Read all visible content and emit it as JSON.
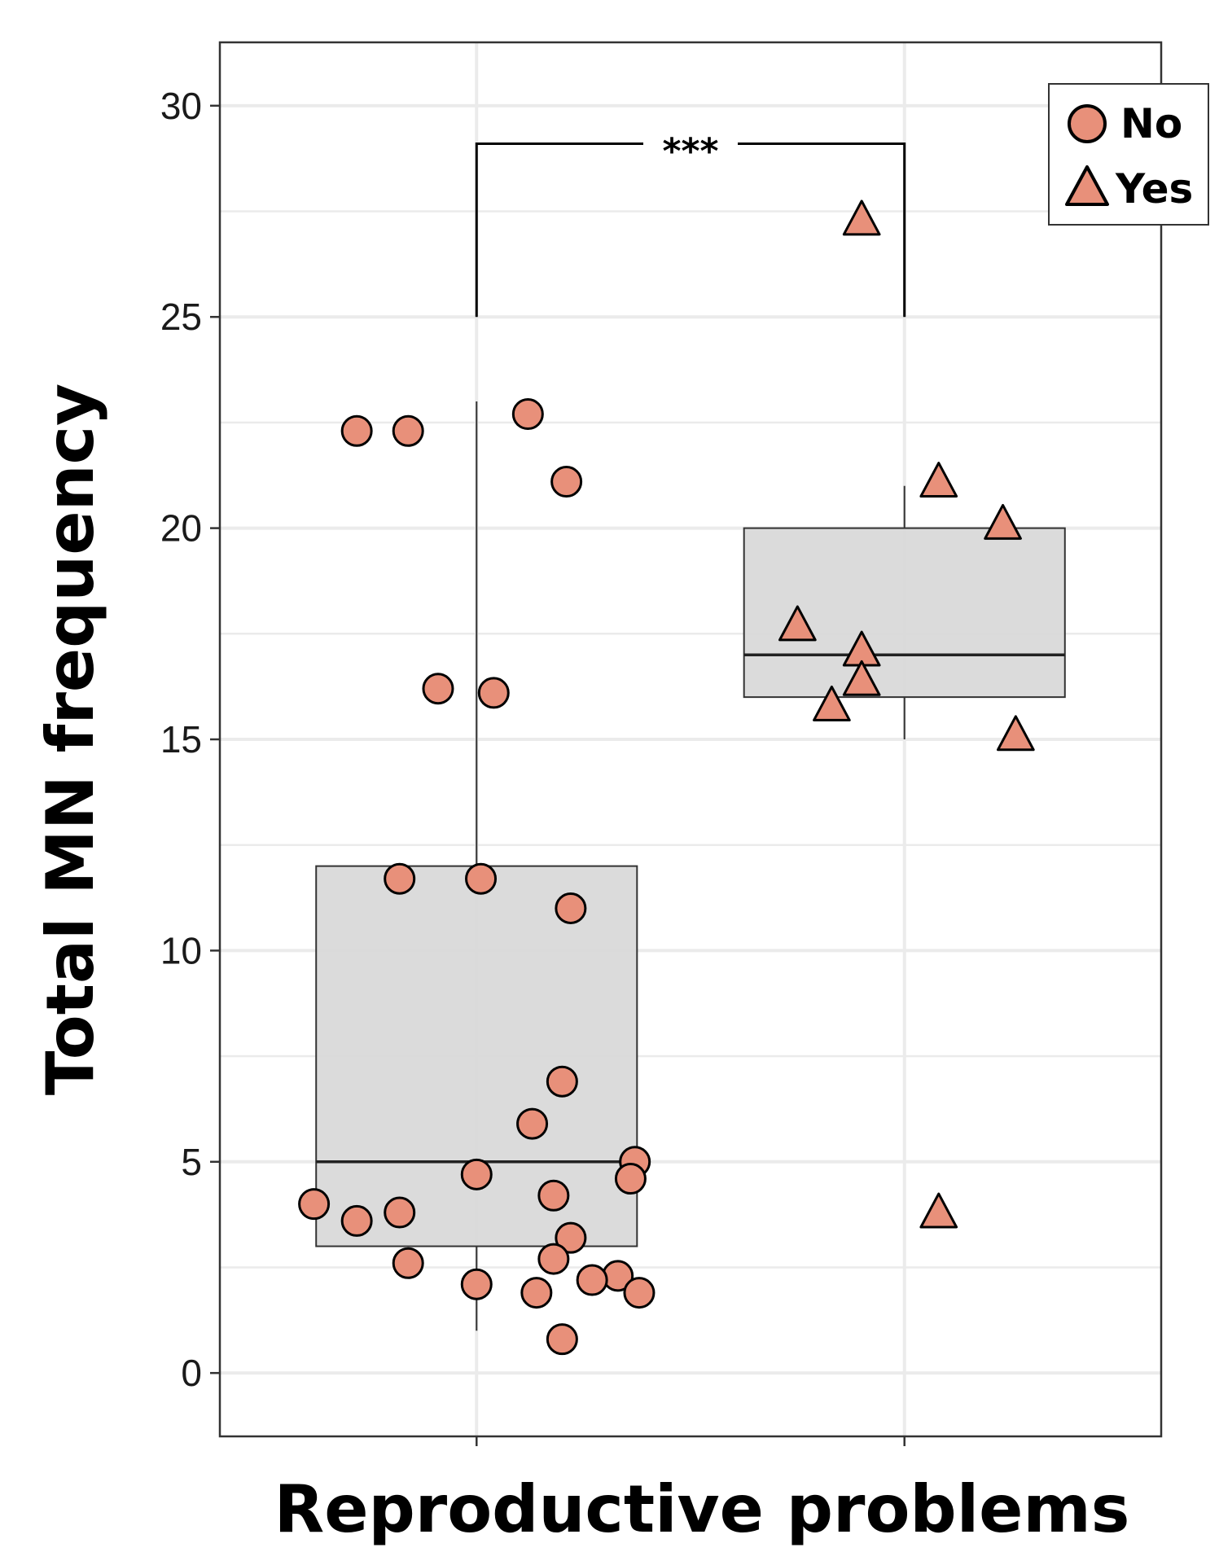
{
  "chart_data": {
    "type": "boxplot",
    "title": "",
    "xlabel": "Reproductive problems",
    "ylabel": "Total MN frequency",
    "ylim": [
      -1.5,
      31.5
    ],
    "yticks": [
      0,
      5,
      10,
      15,
      20,
      25,
      30
    ],
    "grid": true,
    "legend_position": "top-right",
    "colors": {
      "point_fill": "#E8907A",
      "point_stroke": "#000000",
      "box_fill": "#D9D9D9",
      "box_stroke": "#333333",
      "grid": "#EBEBEB"
    },
    "legend": [
      {
        "label": "No",
        "shape": "circle-icon"
      },
      {
        "label": "Yes",
        "shape": "triangle-icon"
      }
    ],
    "significance": {
      "label": "***",
      "between": [
        "No",
        "Yes"
      ],
      "bracket_top": 29.1,
      "bracket_bottom": 25.0
    },
    "groups": [
      {
        "name": "No",
        "shape": "circle",
        "box": {
          "whisker_low": 1.0,
          "q1": 3.0,
          "median": 5.0,
          "q3": 12.0,
          "whisker_high": 23.0
        },
        "points": [
          {
            "jitter": -0.28,
            "y": 22.3
          },
          {
            "jitter": -0.16,
            "y": 22.3
          },
          {
            "jitter": 0.12,
            "y": 22.7
          },
          {
            "jitter": 0.21,
            "y": 21.1
          },
          {
            "jitter": -0.09,
            "y": 16.2
          },
          {
            "jitter": 0.04,
            "y": 16.1
          },
          {
            "jitter": -0.18,
            "y": 11.7
          },
          {
            "jitter": 0.01,
            "y": 11.7
          },
          {
            "jitter": 0.22,
            "y": 11.0
          },
          {
            "jitter": 0.2,
            "y": 6.9
          },
          {
            "jitter": 0.13,
            "y": 5.9
          },
          {
            "jitter": 0.37,
            "y": 5.0
          },
          {
            "jitter": 0.0,
            "y": 4.7
          },
          {
            "jitter": 0.36,
            "y": 4.6
          },
          {
            "jitter": 0.18,
            "y": 4.2
          },
          {
            "jitter": -0.38,
            "y": 4.0
          },
          {
            "jitter": -0.18,
            "y": 3.8
          },
          {
            "jitter": -0.28,
            "y": 3.6
          },
          {
            "jitter": 0.22,
            "y": 3.2
          },
          {
            "jitter": 0.18,
            "y": 2.7
          },
          {
            "jitter": -0.16,
            "y": 2.6
          },
          {
            "jitter": 0.33,
            "y": 2.3
          },
          {
            "jitter": 0.27,
            "y": 2.2
          },
          {
            "jitter": 0.0,
            "y": 2.1
          },
          {
            "jitter": 0.14,
            "y": 1.9
          },
          {
            "jitter": 0.38,
            "y": 1.9
          },
          {
            "jitter": 0.2,
            "y": 0.8
          }
        ]
      },
      {
        "name": "Yes",
        "shape": "triangle",
        "box": {
          "whisker_low": 15.0,
          "q1": 16.0,
          "median": 17.0,
          "q3": 20.0,
          "whisker_high": 21.0
        },
        "points": [
          {
            "jitter": -0.1,
            "y": 27.3
          },
          {
            "jitter": 0.08,
            "y": 21.1
          },
          {
            "jitter": 0.23,
            "y": 20.1
          },
          {
            "jitter": -0.25,
            "y": 17.7
          },
          {
            "jitter": -0.1,
            "y": 17.1
          },
          {
            "jitter": -0.1,
            "y": 16.4
          },
          {
            "jitter": -0.17,
            "y": 15.8
          },
          {
            "jitter": 0.26,
            "y": 15.1
          },
          {
            "jitter": 0.08,
            "y": 3.8
          }
        ]
      }
    ]
  }
}
